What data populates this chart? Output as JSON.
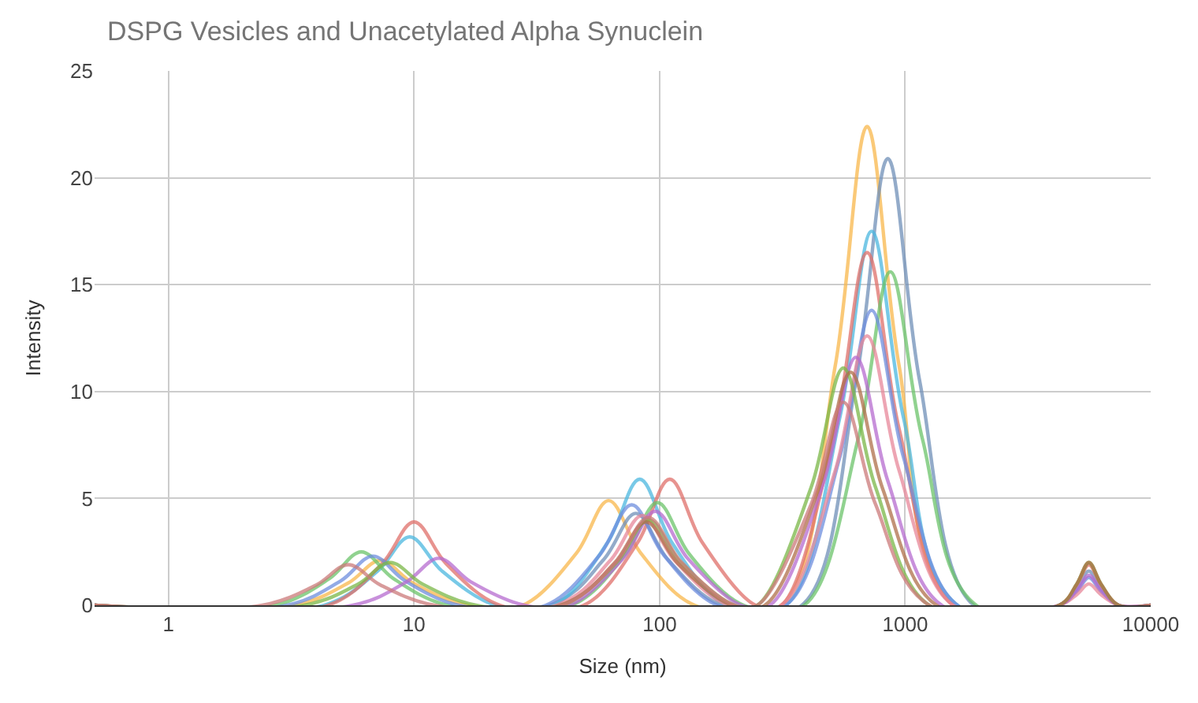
{
  "chart_data": {
    "type": "line",
    "title": "DSPG Vesicles and Unacetylated Alpha Synuclein",
    "xlabel": "Size (nm)",
    "ylabel": "Intensity",
    "log": "x",
    "xlim": [
      0.5,
      10000
    ],
    "xticks": [
      1,
      10,
      100,
      1000,
      10000
    ],
    "ylim": [
      0,
      25
    ],
    "yticks": [
      0,
      5,
      10,
      15,
      20,
      25
    ],
    "grid": true,
    "marker": "none",
    "line_style": "solid",
    "series": [
      {
        "color": "#f9b84c",
        "x": [
          0.5,
          3.26,
          5.41,
          7.3,
          9.86,
          16.4,
          27.7,
          45.9,
          62,
          83.7,
          139,
          313,
          519,
          700,
          945,
          1570,
          10000
        ],
        "values": [
          0,
          0,
          1.05,
          2.1,
          1.05,
          0,
          0,
          2.45,
          4.9,
          2.45,
          0,
          0,
          11.2,
          22.4,
          11.2,
          0,
          0
        ]
      },
      {
        "color": "#6f8fb8",
        "x": [
          0.5,
          35.7,
          59.3,
          80,
          108,
          179,
          379,
          630,
          850,
          1148,
          1904,
          4242,
          5000,
          5600,
          6272,
          7392,
          10000
        ],
        "values": [
          0,
          0,
          2.15,
          4.3,
          2.15,
          0,
          0,
          10.45,
          20.9,
          10.45,
          0,
          0,
          0.8,
          1.6,
          0.8,
          0,
          0
        ]
      },
      {
        "color": "#4cb8e0",
        "x": [
          0.5,
          4.29,
          7.11,
          9.6,
          13.0,
          21.5,
          37.1,
          61.5,
          83,
          112,
          186,
          326,
          541,
          730,
          986,
          1635,
          10000
        ],
        "values": [
          0,
          0,
          1.6,
          3.2,
          1.6,
          0,
          0,
          2.95,
          5.9,
          2.95,
          0,
          0,
          8.75,
          17.5,
          8.75,
          0,
          0
        ]
      },
      {
        "color": "#e0706a",
        "x": [
          0.5,
          4.46,
          7.41,
          10,
          13.5,
          22.4,
          49.1,
          81.5,
          110,
          149,
          246,
          313,
          519,
          700,
          945,
          1570,
          4242,
          5000,
          5600,
          6272,
          7392,
          10000
        ],
        "values": [
          0,
          0,
          1.95,
          3.9,
          1.95,
          0,
          0,
          2.95,
          5.9,
          2.95,
          0,
          0,
          8.25,
          16.5,
          8.25,
          0,
          0,
          0.95,
          1.9,
          0.95,
          0,
          0
        ]
      },
      {
        "color": "#6cc46a",
        "x": [
          0.5,
          2.72,
          4.52,
          6.1,
          8.24,
          13.7,
          43.8,
          72.6,
          98,
          132,
          220,
          388,
          644,
          870,
          1175,
          1949,
          10000
        ],
        "values": [
          0,
          0,
          1.25,
          2.5,
          1.25,
          0,
          0,
          2.4,
          4.8,
          2.4,
          0,
          0,
          7.8,
          15.6,
          7.8,
          0,
          0
        ]
      },
      {
        "color": "#6e8ede",
        "x": [
          0.5,
          3.04,
          5.04,
          6.8,
          9.18,
          15.2,
          34.4,
          57.0,
          77,
          104,
          172,
          326,
          541,
          730,
          986,
          1635,
          4242,
          5000,
          5600,
          6272,
          7392,
          10000
        ],
        "values": [
          0,
          0,
          1.15,
          2.3,
          1.15,
          0,
          0,
          2.35,
          4.7,
          2.35,
          0,
          0,
          6.9,
          13.8,
          6.9,
          0,
          0,
          0.65,
          1.3,
          0.65,
          0,
          0
        ]
      },
      {
        "color": "#e8889a",
        "x": [
          0.5,
          37.9,
          63.0,
          85,
          115,
          190,
          313,
          519,
          700,
          945,
          1570,
          4242,
          5000,
          5600,
          6272,
          7392,
          10000
        ],
        "values": [
          0,
          0,
          2.1,
          4.2,
          2.1,
          0,
          0,
          6.3,
          12.6,
          6.3,
          0,
          0,
          0.5,
          1.0,
          0.5,
          0,
          0
        ]
      },
      {
        "color": "#b66bd0",
        "x": [
          0.5,
          5.63,
          9.33,
          12.6,
          17.0,
          28.2,
          42.9,
          71.1,
          96,
          130,
          215,
          281,
          467,
          630,
          851,
          1411,
          4242,
          5000,
          5600,
          6272,
          7392,
          10000
        ],
        "values": [
          0,
          0,
          1.1,
          2.2,
          1.1,
          0,
          0,
          2.2,
          4.4,
          2.2,
          0,
          0,
          5.8,
          11.6,
          5.8,
          0,
          0,
          0.7,
          1.4,
          0.7,
          0,
          0
        ]
      },
      {
        "color": "#7ab848",
        "x": [
          0.5,
          3.57,
          5.93,
          8,
          10.8,
          17.9,
          40.2,
          66.7,
          90,
          122,
          202,
          250,
          415,
          560,
          756,
          1254,
          4242,
          5000,
          5600,
          6272,
          7392,
          10000
        ],
        "values": [
          0,
          0,
          1.0,
          2.0,
          1.0,
          0,
          0,
          2.0,
          4.0,
          2.0,
          0,
          0,
          5.55,
          11.1,
          5.55,
          0,
          0,
          1.0,
          2.0,
          1.0,
          0,
          0
        ]
      },
      {
        "color": "#b0704a",
        "x": [
          0.5,
          39.3,
          65.2,
          88,
          119,
          197,
          268,
          444,
          600,
          810,
          1344,
          4242,
          5000,
          5600,
          6272,
          7392,
          10000
        ],
        "values": [
          0,
          0,
          1.95,
          3.9,
          1.95,
          0,
          0,
          5.45,
          10.9,
          5.45,
          0,
          0,
          1.0,
          2.0,
          1.0,
          0,
          0
        ]
      },
      {
        "color": "#cc7a7a",
        "x": [
          0.5,
          2.41,
          4.0,
          5.4,
          7.29,
          12.1,
          40.2,
          66.7,
          90,
          122,
          202,
          250,
          415,
          560,
          756,
          1254,
          10000
        ],
        "values": [
          0,
          0,
          0.95,
          1.9,
          0.95,
          0,
          0,
          2.05,
          4.1,
          2.05,
          0,
          0,
          4.75,
          9.5,
          4.75,
          0,
          0
        ]
      }
    ]
  }
}
